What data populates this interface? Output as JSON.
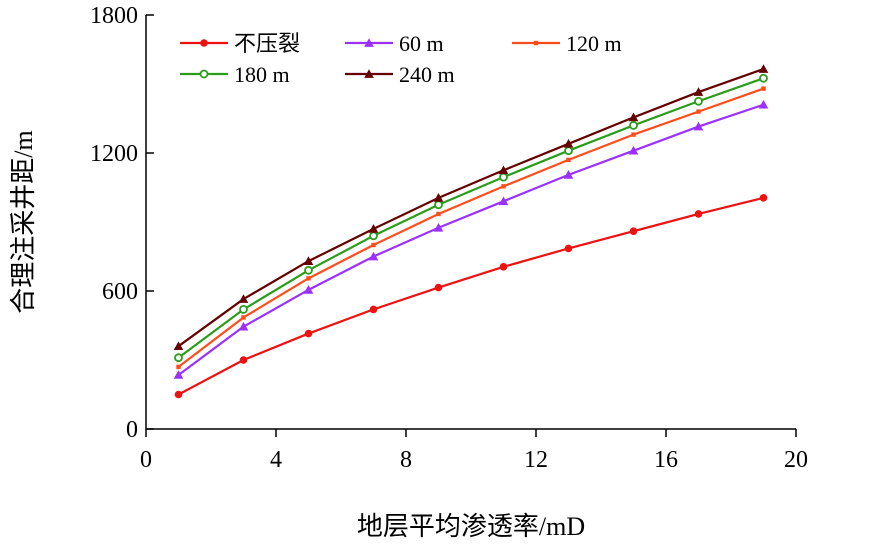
{
  "chart_data": {
    "type": "line",
    "title": "",
    "xlabel": "地层平均渗透率/mD",
    "ylabel": "合理注采井距/m",
    "xlim": [
      0,
      20
    ],
    "ylim": [
      0,
      1800
    ],
    "xticks": [
      0,
      4,
      8,
      12,
      16,
      20
    ],
    "yticks": [
      0,
      600,
      1200,
      1800
    ],
    "grid": false,
    "legend_position": "top-left",
    "x": [
      1,
      3,
      5,
      7,
      9,
      11,
      13,
      15,
      17,
      19
    ],
    "series": [
      {
        "name": "不压裂",
        "color": "#ee1111",
        "marker": "circle",
        "values": [
          150,
          300,
          415,
          520,
          615,
          705,
          785,
          860,
          935,
          1005
        ]
      },
      {
        "name": "60 m",
        "color": "#9b30ff",
        "marker": "triangle",
        "values": [
          235,
          445,
          605,
          750,
          875,
          990,
          1105,
          1210,
          1315,
          1410
        ]
      },
      {
        "name": "120 m",
        "color": "#ff4d1a",
        "marker": "square",
        "values": [
          270,
          485,
          655,
          800,
          935,
          1055,
          1170,
          1280,
          1380,
          1480
        ]
      },
      {
        "name": "180 m",
        "color": "#2a9d1a",
        "marker": "circle-open",
        "values": [
          310,
          520,
          690,
          840,
          975,
          1095,
          1210,
          1320,
          1425,
          1525
        ]
      },
      {
        "name": "240 m",
        "color": "#660000",
        "marker": "triangle",
        "values": [
          360,
          565,
          730,
          870,
          1005,
          1125,
          1240,
          1355,
          1465,
          1565
        ]
      }
    ]
  }
}
